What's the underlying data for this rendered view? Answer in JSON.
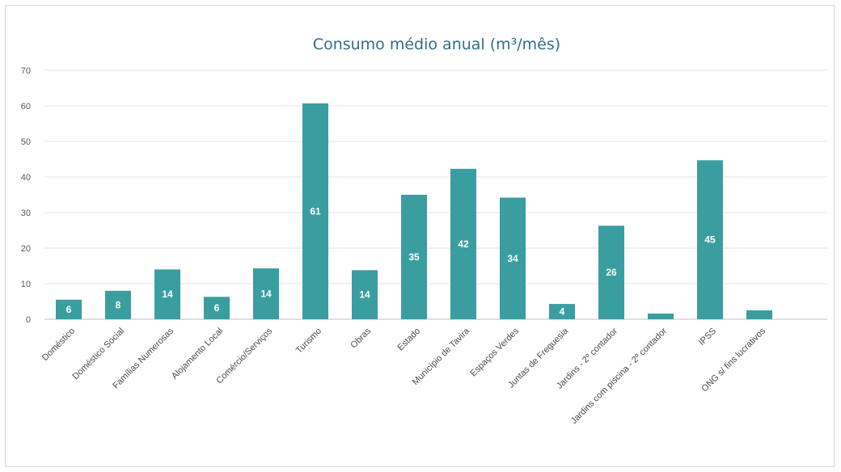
{
  "chart_data": {
    "type": "bar",
    "title": "Consumo médio anual (m³/mês)",
    "xlabel": "",
    "ylabel": "",
    "ylim": [
      0,
      70
    ],
    "yticks": [
      0,
      10,
      20,
      30,
      40,
      50,
      60,
      70
    ],
    "grid": true,
    "legend": "none",
    "bar_color": "#3a9ea0",
    "categories": [
      "Doméstico",
      "Doméstico Social",
      "Famílias Numerosas",
      "Alojamento Local",
      "Comércio/Serviços",
      "Turismo",
      "Obras",
      "Estado",
      "Município de Tavira",
      "Espaços Verdes",
      "Juntas de Freguesia",
      "Jardins - 2º contador",
      "Jardins com piscina - 2º contador",
      "IPSS",
      "ONG s/ fins lucrativos"
    ],
    "values": [
      5.5,
      8,
      14,
      6.3,
      14.3,
      60.7,
      13.8,
      35,
      42.3,
      34.2,
      4.3,
      26.3,
      1.6,
      44.7,
      2.5
    ],
    "data_labels": [
      "6",
      "8",
      "14",
      "6",
      "14",
      "61",
      "14",
      "35",
      "42",
      "34",
      "4",
      "26",
      "",
      "45",
      ""
    ]
  }
}
